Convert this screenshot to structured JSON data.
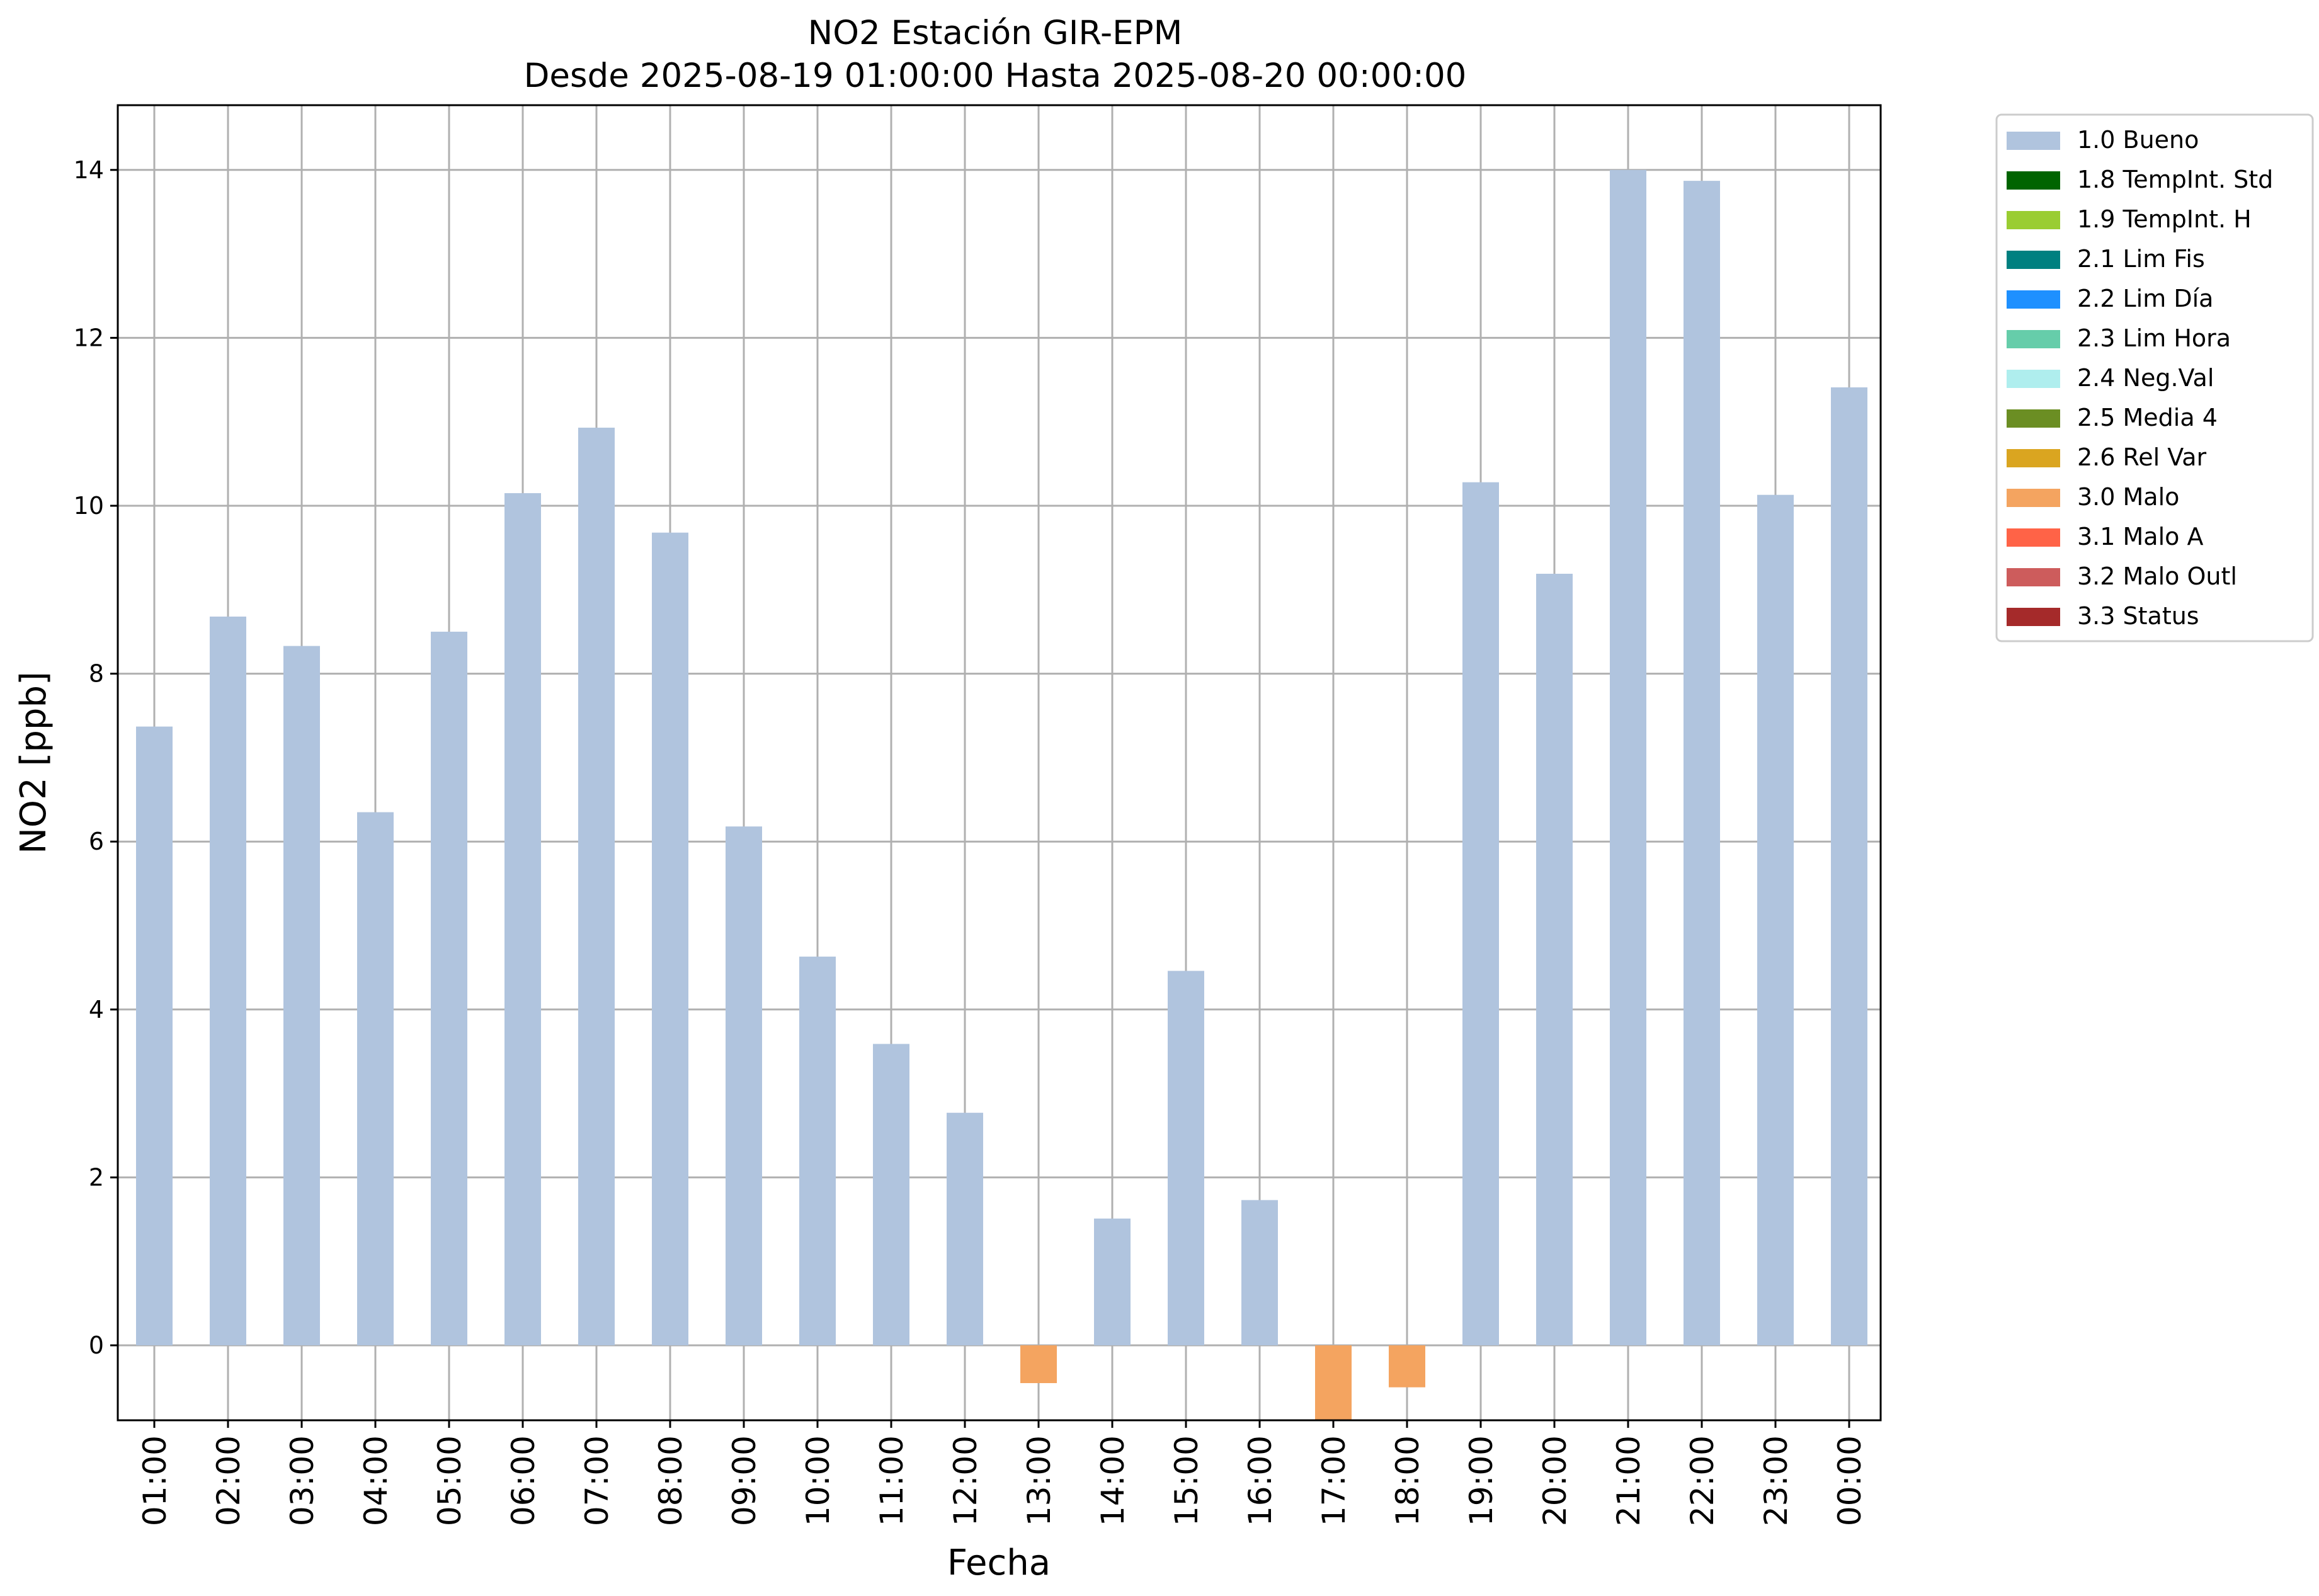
{
  "chart_data": {
    "type": "bar",
    "title": "NO2 Estación GIR-EPM",
    "subtitle": "Desde 2025-08-19 01:00:00 Hasta 2025-08-20 00:00:00",
    "xlabel": "Fecha",
    "ylabel": "NO2 [ppb]",
    "ylim": [
      -0.9,
      14.75
    ],
    "yticks": [
      0,
      2,
      4,
      6,
      8,
      10,
      12,
      14
    ],
    "grid": true,
    "legend_position": "outside-top-right",
    "categories": [
      "01:00",
      "02:00",
      "03:00",
      "04:00",
      "05:00",
      "06:00",
      "07:00",
      "08:00",
      "09:00",
      "10:00",
      "11:00",
      "12:00",
      "13:00",
      "14:00",
      "15:00",
      "16:00",
      "17:00",
      "18:00",
      "19:00",
      "20:00",
      "21:00",
      "22:00",
      "23:00",
      "00:00"
    ],
    "values": [
      7.37,
      8.68,
      8.33,
      6.35,
      8.5,
      10.15,
      10.93,
      9.68,
      6.18,
      4.63,
      3.59,
      2.77,
      -0.45,
      1.51,
      4.46,
      1.73,
      -0.9,
      -0.5,
      10.28,
      9.19,
      14.0,
      13.87,
      10.13,
      11.41
    ],
    "flags": [
      "1.0 Bueno",
      "1.0 Bueno",
      "1.0 Bueno",
      "1.0 Bueno",
      "1.0 Bueno",
      "1.0 Bueno",
      "1.0 Bueno",
      "1.0 Bueno",
      "1.0 Bueno",
      "1.0 Bueno",
      "1.0 Bueno",
      "1.0 Bueno",
      "3.0 Malo",
      "1.0 Bueno",
      "1.0 Bueno",
      "1.0 Bueno",
      "3.0 Malo",
      "3.0 Malo",
      "1.0 Bueno",
      "1.0 Bueno",
      "1.0 Bueno",
      "1.0 Bueno",
      "1.0 Bueno",
      "1.0 Bueno"
    ],
    "legend": [
      {
        "label": "1.0 Bueno",
        "color": "#b0c4de"
      },
      {
        "label": "1.8 TempInt. Std",
        "color": "#006400"
      },
      {
        "label": "1.9 TempInt. H",
        "color": "#9acd32"
      },
      {
        "label": "2.1 Lim Fis",
        "color": "#008080"
      },
      {
        "label": "2.2 Lim Día",
        "color": "#1e90ff"
      },
      {
        "label": "2.3 Lim Hora",
        "color": "#66cdaa"
      },
      {
        "label": "2.4 Neg.Val",
        "color": "#afeeee"
      },
      {
        "label": "2.5 Media 4",
        "color": "#6b8e23"
      },
      {
        "label": "2.6 Rel Var",
        "color": "#daa520"
      },
      {
        "label": "3.0 Malo",
        "color": "#f4a460"
      },
      {
        "label": "3.1 Malo A",
        "color": "#ff6347"
      },
      {
        "label": "3.2 Malo Outl",
        "color": "#cd5c5c"
      },
      {
        "label": "3.3 Status",
        "color": "#a52a2a"
      }
    ]
  }
}
